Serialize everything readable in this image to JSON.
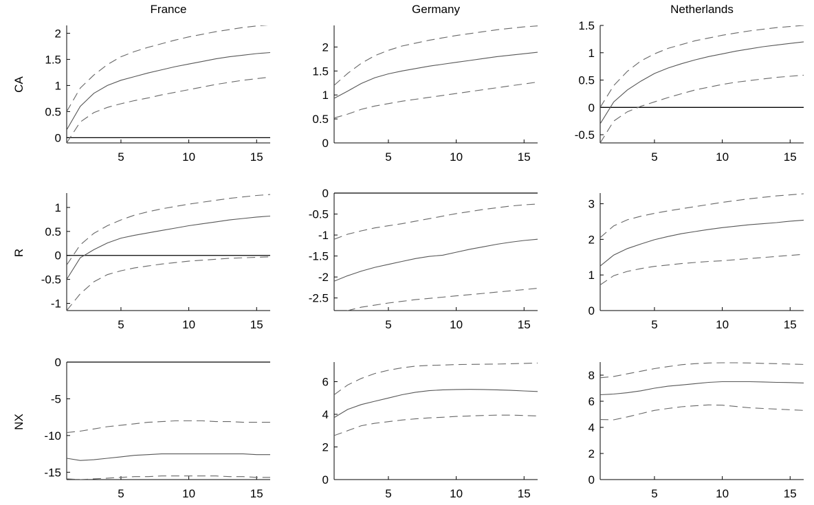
{
  "figure": {
    "columns": [
      "France",
      "Germany",
      "Netherlands"
    ],
    "rows": [
      "CA",
      "R",
      "NX"
    ]
  },
  "chart_data": [
    {
      "type": "line",
      "row": "CA",
      "column": "France",
      "x": [
        1,
        2,
        3,
        4,
        5,
        6,
        7,
        8,
        9,
        10,
        11,
        12,
        13,
        14,
        15,
        16
      ],
      "xlim": [
        1,
        16
      ],
      "xticks": [
        5,
        10,
        15
      ],
      "ylim": [
        -0.1,
        2.15
      ],
      "yticks": [
        0,
        0.5,
        1,
        1.5,
        2
      ],
      "zero_line": true,
      "series": [
        {
          "role": "estimate",
          "style": "solid",
          "values": [
            0.15,
            0.6,
            0.85,
            1.0,
            1.1,
            1.17,
            1.24,
            1.3,
            1.36,
            1.41,
            1.46,
            1.51,
            1.55,
            1.58,
            1.61,
            1.63
          ]
        },
        {
          "role": "upper",
          "style": "dashed",
          "values": [
            0.5,
            0.95,
            1.2,
            1.4,
            1.55,
            1.65,
            1.73,
            1.8,
            1.87,
            1.93,
            1.98,
            2.03,
            2.07,
            2.11,
            2.14,
            2.16
          ]
        },
        {
          "role": "lower",
          "style": "dashed",
          "values": [
            -0.1,
            0.3,
            0.48,
            0.58,
            0.65,
            0.71,
            0.76,
            0.82,
            0.87,
            0.92,
            0.97,
            1.02,
            1.06,
            1.1,
            1.13,
            1.16
          ]
        }
      ]
    },
    {
      "type": "line",
      "row": "CA",
      "column": "Germany",
      "x": [
        1,
        2,
        3,
        4,
        5,
        6,
        7,
        8,
        9,
        10,
        11,
        12,
        13,
        14,
        15,
        16
      ],
      "xlim": [
        1,
        16
      ],
      "xticks": [
        5,
        10,
        15
      ],
      "ylim": [
        0,
        2.45
      ],
      "yticks": [
        0,
        0.5,
        1,
        1.5,
        2
      ],
      "zero_line": false,
      "series": [
        {
          "role": "estimate",
          "style": "solid",
          "values": [
            0.93,
            1.08,
            1.24,
            1.36,
            1.44,
            1.5,
            1.55,
            1.6,
            1.64,
            1.68,
            1.72,
            1.76,
            1.8,
            1.83,
            1.86,
            1.89
          ]
        },
        {
          "role": "upper",
          "style": "dashed",
          "values": [
            1.2,
            1.45,
            1.66,
            1.82,
            1.93,
            2.02,
            2.08,
            2.14,
            2.19,
            2.24,
            2.28,
            2.32,
            2.36,
            2.39,
            2.42,
            2.44
          ]
        },
        {
          "role": "lower",
          "style": "dashed",
          "values": [
            0.52,
            0.6,
            0.7,
            0.77,
            0.82,
            0.87,
            0.91,
            0.95,
            0.99,
            1.03,
            1.07,
            1.11,
            1.15,
            1.19,
            1.23,
            1.27
          ]
        }
      ]
    },
    {
      "type": "line",
      "row": "CA",
      "column": "Netherlands",
      "x": [
        1,
        2,
        3,
        4,
        5,
        6,
        7,
        8,
        9,
        10,
        11,
        12,
        13,
        14,
        15,
        16
      ],
      "xlim": [
        1,
        16
      ],
      "xticks": [
        5,
        10,
        15
      ],
      "ylim": [
        -0.65,
        1.5
      ],
      "yticks": [
        -0.5,
        0,
        0.5,
        1,
        1.5
      ],
      "zero_line": true,
      "series": [
        {
          "role": "estimate",
          "style": "solid",
          "values": [
            -0.3,
            0.1,
            0.32,
            0.48,
            0.62,
            0.72,
            0.8,
            0.87,
            0.93,
            0.98,
            1.03,
            1.07,
            1.11,
            1.14,
            1.17,
            1.2
          ]
        },
        {
          "role": "upper",
          "style": "dashed",
          "values": [
            0.0,
            0.4,
            0.66,
            0.85,
            0.98,
            1.08,
            1.15,
            1.22,
            1.27,
            1.32,
            1.36,
            1.4,
            1.43,
            1.46,
            1.48,
            1.5
          ]
        },
        {
          "role": "lower",
          "style": "dashed",
          "values": [
            -0.65,
            -0.25,
            -0.08,
            0.02,
            0.1,
            0.18,
            0.25,
            0.32,
            0.37,
            0.42,
            0.46,
            0.49,
            0.52,
            0.55,
            0.57,
            0.59
          ]
        }
      ]
    },
    {
      "type": "line",
      "row": "R",
      "column": "France",
      "x": [
        1,
        2,
        3,
        4,
        5,
        6,
        7,
        8,
        9,
        10,
        11,
        12,
        13,
        14,
        15,
        16
      ],
      "xlim": [
        1,
        16
      ],
      "xticks": [
        5,
        10,
        15
      ],
      "ylim": [
        -1.15,
        1.3
      ],
      "yticks": [
        -1,
        -0.5,
        0,
        0.5,
        1
      ],
      "zero_line": true,
      "series": [
        {
          "role": "estimate",
          "style": "solid",
          "values": [
            -0.5,
            -0.05,
            0.12,
            0.26,
            0.36,
            0.42,
            0.47,
            0.52,
            0.57,
            0.62,
            0.66,
            0.7,
            0.74,
            0.77,
            0.8,
            0.82
          ]
        },
        {
          "role": "upper",
          "style": "dashed",
          "values": [
            -0.2,
            0.22,
            0.46,
            0.62,
            0.74,
            0.84,
            0.91,
            0.97,
            1.02,
            1.07,
            1.11,
            1.15,
            1.19,
            1.22,
            1.25,
            1.27
          ]
        },
        {
          "role": "lower",
          "style": "dashed",
          "values": [
            -1.15,
            -0.8,
            -0.55,
            -0.4,
            -0.32,
            -0.26,
            -0.22,
            -0.18,
            -0.15,
            -0.12,
            -0.1,
            -0.08,
            -0.06,
            -0.05,
            -0.04,
            -0.03
          ]
        }
      ]
    },
    {
      "type": "line",
      "row": "R",
      "column": "Germany",
      "x": [
        1,
        2,
        3,
        4,
        5,
        6,
        7,
        8,
        9,
        10,
        11,
        12,
        13,
        14,
        15,
        16
      ],
      "xlim": [
        1,
        16
      ],
      "xticks": [
        5,
        10,
        15
      ],
      "ylim": [
        -2.8,
        0
      ],
      "yticks": [
        -2.5,
        -2,
        -1.5,
        -1,
        -0.5,
        0
      ],
      "zero_line": true,
      "series": [
        {
          "role": "estimate",
          "style": "solid",
          "values": [
            -2.1,
            -1.97,
            -1.86,
            -1.77,
            -1.7,
            -1.63,
            -1.56,
            -1.51,
            -1.48,
            -1.41,
            -1.34,
            -1.28,
            -1.22,
            -1.17,
            -1.13,
            -1.1
          ]
        },
        {
          "role": "upper",
          "style": "dashed",
          "values": [
            -1.1,
            -0.98,
            -0.9,
            -0.83,
            -0.78,
            -0.73,
            -0.67,
            -0.61,
            -0.55,
            -0.49,
            -0.44,
            -0.39,
            -0.35,
            -0.31,
            -0.28,
            -0.26
          ]
        },
        {
          "role": "lower",
          "style": "dashed",
          "values": [
            -2.85,
            -2.8,
            -2.72,
            -2.67,
            -2.62,
            -2.58,
            -2.54,
            -2.51,
            -2.48,
            -2.45,
            -2.42,
            -2.39,
            -2.36,
            -2.33,
            -2.3,
            -2.27
          ]
        }
      ]
    },
    {
      "type": "line",
      "row": "R",
      "column": "Netherlands",
      "x": [
        1,
        2,
        3,
        4,
        5,
        6,
        7,
        8,
        9,
        10,
        11,
        12,
        13,
        14,
        15,
        16
      ],
      "xlim": [
        1,
        16
      ],
      "xticks": [
        5,
        10,
        15
      ],
      "ylim": [
        0,
        3.3
      ],
      "yticks": [
        0,
        1,
        2,
        3
      ],
      "zero_line": false,
      "series": [
        {
          "role": "estimate",
          "style": "solid",
          "values": [
            1.25,
            1.56,
            1.74,
            1.87,
            1.99,
            2.08,
            2.16,
            2.22,
            2.28,
            2.33,
            2.37,
            2.41,
            2.44,
            2.47,
            2.51,
            2.54
          ]
        },
        {
          "role": "upper",
          "style": "dashed",
          "values": [
            2.05,
            2.38,
            2.55,
            2.65,
            2.73,
            2.8,
            2.86,
            2.92,
            2.98,
            3.04,
            3.09,
            3.14,
            3.18,
            3.22,
            3.25,
            3.28
          ]
        },
        {
          "role": "lower",
          "style": "dashed",
          "values": [
            0.72,
            0.98,
            1.1,
            1.18,
            1.24,
            1.28,
            1.32,
            1.35,
            1.38,
            1.4,
            1.43,
            1.46,
            1.49,
            1.52,
            1.55,
            1.58
          ]
        }
      ]
    },
    {
      "type": "line",
      "row": "NX",
      "column": "France",
      "x": [
        1,
        2,
        3,
        4,
        5,
        6,
        7,
        8,
        9,
        10,
        11,
        12,
        13,
        14,
        15,
        16
      ],
      "xlim": [
        1,
        16
      ],
      "xticks": [
        5,
        10,
        15
      ],
      "ylim": [
        -16,
        0
      ],
      "yticks": [
        -15,
        -10,
        -5,
        0
      ],
      "zero_line": true,
      "series": [
        {
          "role": "estimate",
          "style": "solid",
          "values": [
            -13.1,
            -13.4,
            -13.3,
            -13.1,
            -12.9,
            -12.7,
            -12.6,
            -12.5,
            -12.5,
            -12.5,
            -12.5,
            -12.5,
            -12.5,
            -12.5,
            -12.6,
            -12.6
          ]
        },
        {
          "role": "upper",
          "style": "dashed",
          "values": [
            -9.6,
            -9.4,
            -9.1,
            -8.8,
            -8.6,
            -8.4,
            -8.2,
            -8.1,
            -8.0,
            -8.0,
            -8.0,
            -8.1,
            -8.1,
            -8.2,
            -8.2,
            -8.2
          ]
        },
        {
          "role": "lower",
          "style": "dashed",
          "values": [
            -15.9,
            -16.0,
            -15.9,
            -15.8,
            -15.7,
            -15.6,
            -15.6,
            -15.5,
            -15.5,
            -15.5,
            -15.5,
            -15.5,
            -15.6,
            -15.6,
            -15.7,
            -15.7
          ]
        }
      ]
    },
    {
      "type": "line",
      "row": "NX",
      "column": "Germany",
      "x": [
        1,
        2,
        3,
        4,
        5,
        6,
        7,
        8,
        9,
        10,
        11,
        12,
        13,
        14,
        15,
        16
      ],
      "xlim": [
        1,
        16
      ],
      "xticks": [
        5,
        10,
        15
      ],
      "ylim": [
        0,
        7.2
      ],
      "yticks": [
        0,
        2,
        4,
        6
      ],
      "zero_line": false,
      "series": [
        {
          "role": "estimate",
          "style": "solid",
          "values": [
            3.8,
            4.3,
            4.6,
            4.8,
            5.0,
            5.2,
            5.35,
            5.45,
            5.5,
            5.52,
            5.53,
            5.52,
            5.5,
            5.47,
            5.43,
            5.4
          ]
        },
        {
          "role": "upper",
          "style": "dashed",
          "values": [
            5.2,
            5.8,
            6.2,
            6.5,
            6.7,
            6.85,
            6.95,
            7.0,
            7.02,
            7.05,
            7.06,
            7.07,
            7.08,
            7.1,
            7.12,
            7.14
          ]
        },
        {
          "role": "lower",
          "style": "dashed",
          "values": [
            2.7,
            3.0,
            3.3,
            3.45,
            3.55,
            3.65,
            3.72,
            3.78,
            3.82,
            3.87,
            3.9,
            3.93,
            3.95,
            3.95,
            3.93,
            3.9
          ]
        }
      ]
    },
    {
      "type": "line",
      "row": "NX",
      "column": "Netherlands",
      "x": [
        1,
        2,
        3,
        4,
        5,
        6,
        7,
        8,
        9,
        10,
        11,
        12,
        13,
        14,
        15,
        16
      ],
      "xlim": [
        1,
        16
      ],
      "xticks": [
        5,
        10,
        15
      ],
      "ylim": [
        0,
        9
      ],
      "yticks": [
        0,
        2,
        4,
        6,
        8
      ],
      "zero_line": false,
      "series": [
        {
          "role": "estimate",
          "style": "solid",
          "values": [
            6.5,
            6.55,
            6.65,
            6.8,
            7.0,
            7.15,
            7.25,
            7.35,
            7.45,
            7.5,
            7.5,
            7.5,
            7.48,
            7.45,
            7.43,
            7.4
          ]
        },
        {
          "role": "upper",
          "style": "dashed",
          "values": [
            7.8,
            7.9,
            8.1,
            8.3,
            8.5,
            8.65,
            8.8,
            8.88,
            8.93,
            8.95,
            8.95,
            8.93,
            8.9,
            8.88,
            8.85,
            8.82
          ]
        },
        {
          "role": "lower",
          "style": "dashed",
          "values": [
            4.6,
            4.58,
            4.8,
            5.05,
            5.3,
            5.45,
            5.58,
            5.65,
            5.72,
            5.7,
            5.6,
            5.5,
            5.45,
            5.4,
            5.35,
            5.3
          ]
        }
      ]
    }
  ]
}
